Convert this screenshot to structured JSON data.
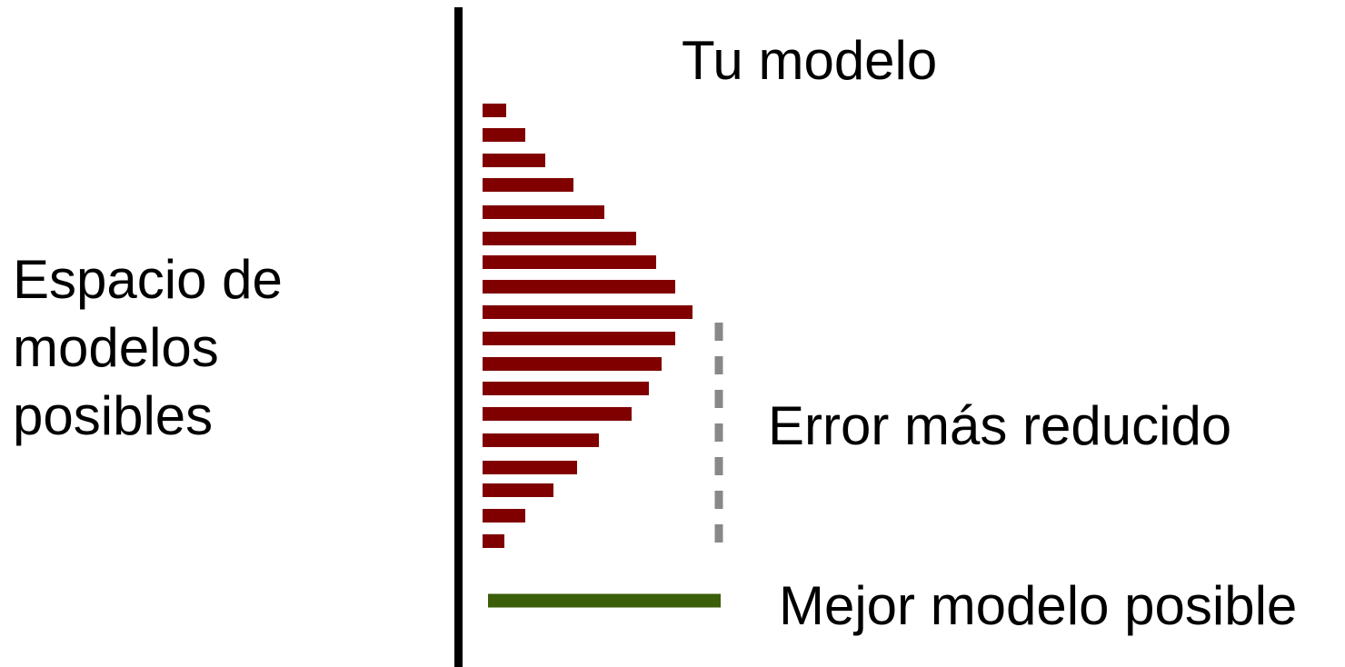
{
  "top_label": "Tu modelo",
  "side_label": {
    "lines": [
      "Espacio de",
      "modelos",
      "posibles"
    ]
  },
  "error_label": "Error más reducido",
  "best_label": "Mejor modelo posible"
}
